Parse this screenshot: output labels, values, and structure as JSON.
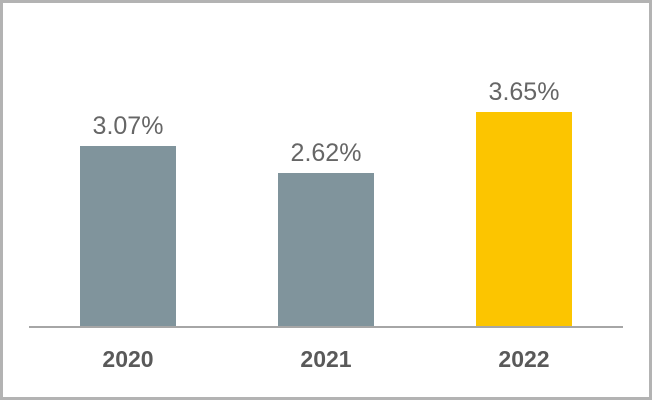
{
  "chart_data": {
    "type": "bar",
    "title": "",
    "categories": [
      "2020",
      "2021",
      "2022"
    ],
    "values": [
      3.07,
      2.62,
      3.65
    ],
    "value_labels": [
      "3.07%",
      "2.62%",
      "3.65%"
    ],
    "unit": "%",
    "ylim": [
      0,
      4
    ],
    "grid": false,
    "legend": "none",
    "y_axis_visible": false,
    "baseline_axis_visible": true,
    "bar_colors": [
      "#80949C",
      "#80949C",
      "#FCC500"
    ],
    "highlight_index": 2,
    "axis_line_color": "#A6A6A6",
    "value_label_color": "#666666",
    "category_label_color": "#595959"
  },
  "frame": {
    "border_color": "#B3B3B3",
    "background": "#FFFFFF"
  }
}
